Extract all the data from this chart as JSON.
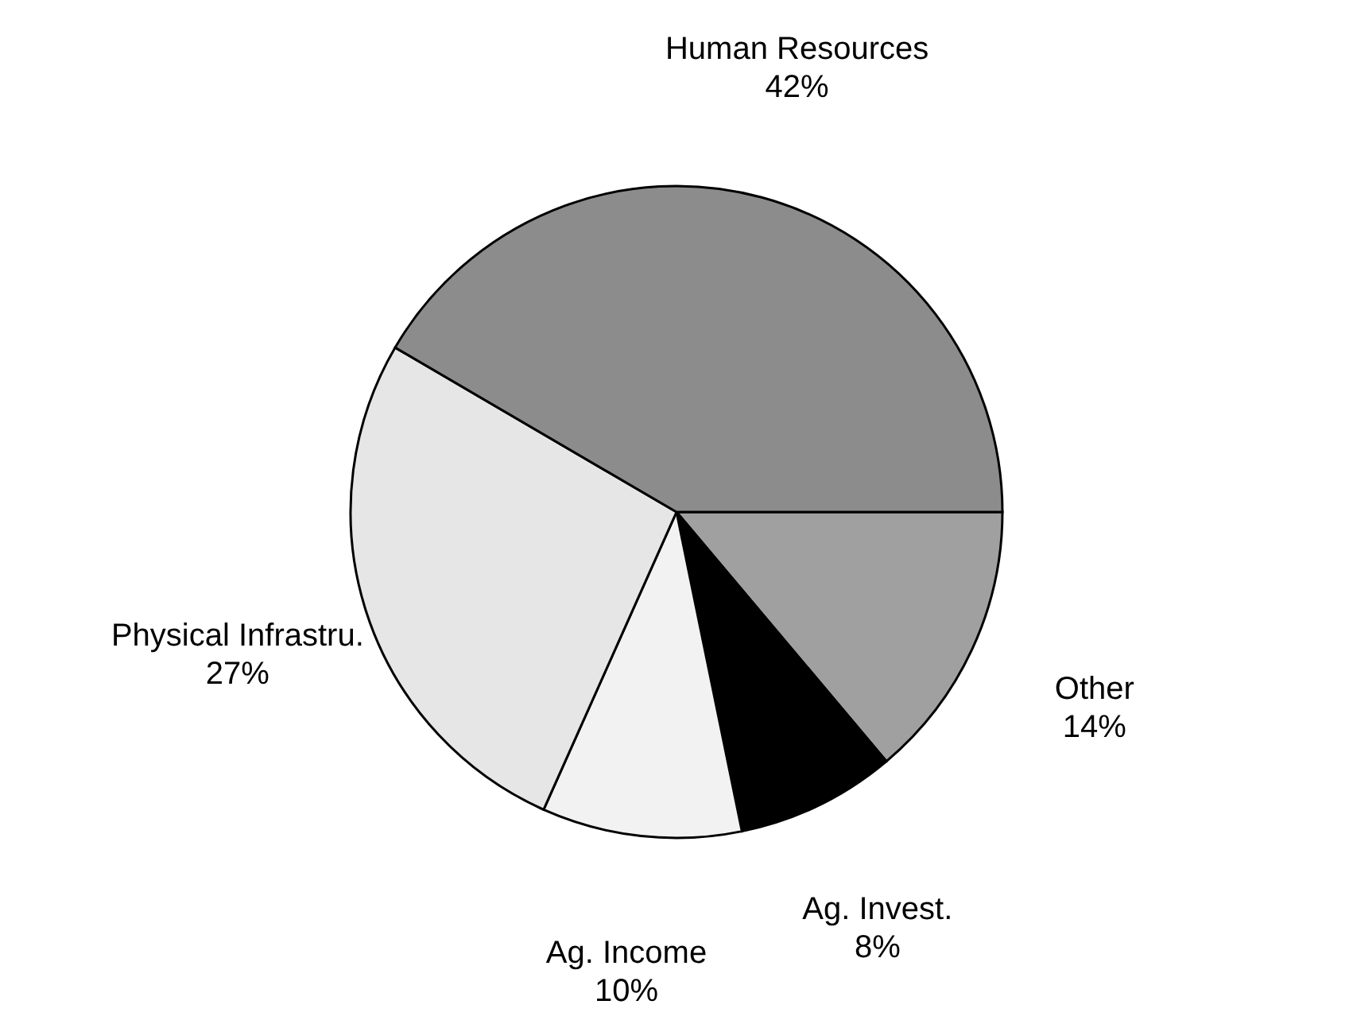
{
  "chart_data": {
    "type": "pie",
    "categories": [
      "Other",
      "Ag. Invest.",
      "Ag. Income",
      "Physical Infrastru.",
      "Human Resources"
    ],
    "values": [
      14,
      8,
      10,
      27,
      42
    ],
    "colors": [
      "#a0a0a0",
      "#000000",
      "#f2f2f2",
      "#e6e6e6",
      "#8c8c8c"
    ],
    "value_labels": [
      "14%",
      "8%",
      "10%",
      "27%",
      "42%"
    ]
  }
}
